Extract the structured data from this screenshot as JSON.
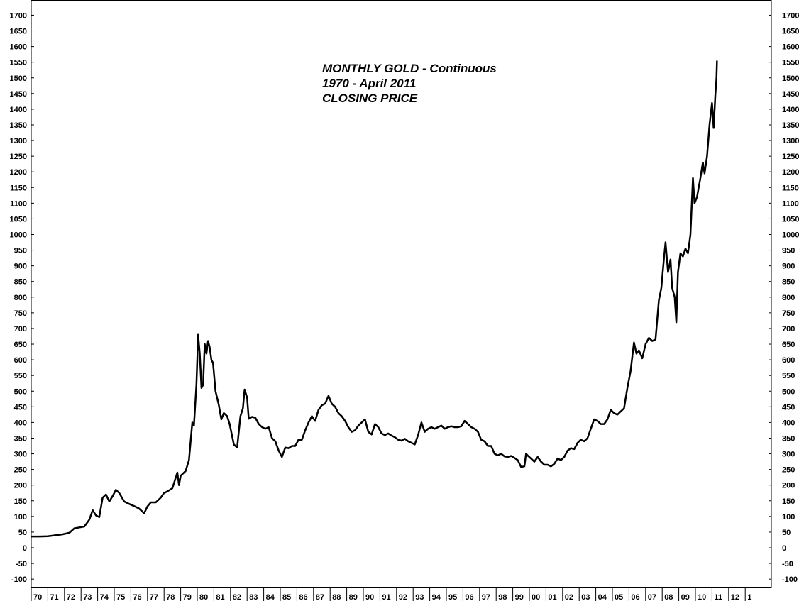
{
  "chart_data": {
    "type": "line",
    "title_lines": [
      "MONTHLY GOLD - Continuous",
      "1970 - April 2011",
      "CLOSING PRICE"
    ],
    "xlabel": "",
    "ylabel": "",
    "ylim": [
      -115,
      1725
    ],
    "y_ticks": [
      1700,
      1650,
      1600,
      1550,
      1500,
      1450,
      1400,
      1350,
      1300,
      1250,
      1200,
      1150,
      1100,
      1050,
      1000,
      950,
      900,
      850,
      800,
      750,
      700,
      650,
      600,
      550,
      500,
      450,
      400,
      350,
      300,
      250,
      200,
      150,
      100,
      50,
      0,
      -50,
      -100
    ],
    "y_tick_labels": [
      "1700",
      "1650",
      "1600",
      "1550",
      "1500",
      "1450",
      "1400",
      "1350",
      "1300",
      "1250",
      "1200",
      "1150",
      "1100",
      "1050",
      "1000",
      "950",
      "900",
      "850",
      "800",
      "750",
      "700",
      "650",
      "600",
      "550",
      "500",
      "450",
      "400",
      "350",
      "300",
      "250",
      "200",
      "150",
      "100",
      "50",
      "0",
      "-50",
      "-100"
    ],
    "xlim": [
      1970,
      2013.3
    ],
    "x_tick_labels": [
      "70",
      "71",
      "72",
      "73",
      "74",
      "75",
      "76",
      "77",
      "78",
      "79",
      "80",
      "81",
      "82",
      "83",
      "84",
      "85",
      "86",
      "87",
      "88",
      "89",
      "90",
      "91",
      "92",
      "93",
      "94",
      "95",
      "96",
      "97",
      "98",
      "99",
      "00",
      "01",
      "02",
      "03",
      "04",
      "05",
      "06",
      "07",
      "08",
      "09",
      "10",
      "11",
      "12",
      "1"
    ],
    "grid": false,
    "legend": "none",
    "line_color": "#000000",
    "series": [
      {
        "points": [
          [
            1970.0,
            36
          ],
          [
            1970.5,
            36
          ],
          [
            1971.0,
            37
          ],
          [
            1971.5,
            40
          ],
          [
            1971.9,
            43
          ],
          [
            1972.3,
            48
          ],
          [
            1972.6,
            62
          ],
          [
            1972.9,
            65
          ],
          [
            1973.2,
            68
          ],
          [
            1973.5,
            90
          ],
          [
            1973.7,
            120
          ],
          [
            1973.9,
            103
          ],
          [
            1974.1,
            98
          ],
          [
            1974.3,
            160
          ],
          [
            1974.5,
            170
          ],
          [
            1974.7,
            148
          ],
          [
            1974.9,
            165
          ],
          [
            1975.1,
            185
          ],
          [
            1975.3,
            175
          ],
          [
            1975.6,
            148
          ],
          [
            1975.9,
            140
          ],
          [
            1976.2,
            133
          ],
          [
            1976.5,
            125
          ],
          [
            1976.8,
            110
          ],
          [
            1977.0,
            132
          ],
          [
            1977.2,
            145
          ],
          [
            1977.5,
            145
          ],
          [
            1977.8,
            160
          ],
          [
            1978.0,
            175
          ],
          [
            1978.2,
            180
          ],
          [
            1978.5,
            190
          ],
          [
            1978.8,
            240
          ],
          [
            1978.9,
            200
          ],
          [
            1979.0,
            230
          ],
          [
            1979.3,
            245
          ],
          [
            1979.5,
            280
          ],
          [
            1979.7,
            400
          ],
          [
            1979.8,
            390
          ],
          [
            1979.95,
            520
          ],
          [
            1980.05,
            680
          ],
          [
            1980.15,
            620
          ],
          [
            1980.25,
            510
          ],
          [
            1980.35,
            520
          ],
          [
            1980.45,
            650
          ],
          [
            1980.55,
            620
          ],
          [
            1980.65,
            660
          ],
          [
            1980.75,
            640
          ],
          [
            1980.85,
            600
          ],
          [
            1980.95,
            590
          ],
          [
            1981.1,
            500
          ],
          [
            1981.3,
            455
          ],
          [
            1981.45,
            410
          ],
          [
            1981.6,
            430
          ],
          [
            1981.8,
            420
          ],
          [
            1981.95,
            395
          ],
          [
            1982.2,
            330
          ],
          [
            1982.4,
            320
          ],
          [
            1982.6,
            420
          ],
          [
            1982.75,
            445
          ],
          [
            1982.85,
            505
          ],
          [
            1983.0,
            480
          ],
          [
            1983.1,
            412
          ],
          [
            1983.3,
            418
          ],
          [
            1983.5,
            415
          ],
          [
            1983.7,
            395
          ],
          [
            1983.9,
            385
          ],
          [
            1984.1,
            380
          ],
          [
            1984.3,
            385
          ],
          [
            1984.5,
            350
          ],
          [
            1984.7,
            340
          ],
          [
            1984.9,
            310
          ],
          [
            1985.1,
            290
          ],
          [
            1985.3,
            320
          ],
          [
            1985.5,
            318
          ],
          [
            1985.7,
            325
          ],
          [
            1985.9,
            325
          ],
          [
            1986.1,
            345
          ],
          [
            1986.3,
            345
          ],
          [
            1986.5,
            375
          ],
          [
            1986.7,
            400
          ],
          [
            1986.9,
            420
          ],
          [
            1987.1,
            405
          ],
          [
            1987.3,
            440
          ],
          [
            1987.5,
            455
          ],
          [
            1987.7,
            460
          ],
          [
            1987.9,
            485
          ],
          [
            1988.1,
            460
          ],
          [
            1988.3,
            450
          ],
          [
            1988.5,
            430
          ],
          [
            1988.7,
            420
          ],
          [
            1988.9,
            405
          ],
          [
            1989.1,
            385
          ],
          [
            1989.3,
            370
          ],
          [
            1989.5,
            375
          ],
          [
            1989.7,
            390
          ],
          [
            1989.9,
            400
          ],
          [
            1990.1,
            410
          ],
          [
            1990.3,
            370
          ],
          [
            1990.5,
            362
          ],
          [
            1990.7,
            395
          ],
          [
            1990.9,
            385
          ],
          [
            1991.1,
            365
          ],
          [
            1991.3,
            360
          ],
          [
            1991.5,
            365
          ],
          [
            1991.7,
            358
          ],
          [
            1991.9,
            353
          ],
          [
            1992.1,
            345
          ],
          [
            1992.3,
            342
          ],
          [
            1992.5,
            348
          ],
          [
            1992.7,
            340
          ],
          [
            1992.9,
            335
          ],
          [
            1993.1,
            330
          ],
          [
            1993.3,
            360
          ],
          [
            1993.5,
            400
          ],
          [
            1993.7,
            370
          ],
          [
            1993.9,
            380
          ],
          [
            1994.1,
            385
          ],
          [
            1994.3,
            380
          ],
          [
            1994.5,
            385
          ],
          [
            1994.7,
            390
          ],
          [
            1994.9,
            380
          ],
          [
            1995.1,
            385
          ],
          [
            1995.3,
            388
          ],
          [
            1995.5,
            385
          ],
          [
            1995.7,
            385
          ],
          [
            1995.9,
            388
          ],
          [
            1996.1,
            405
          ],
          [
            1996.3,
            395
          ],
          [
            1996.5,
            385
          ],
          [
            1996.7,
            380
          ],
          [
            1996.9,
            370
          ],
          [
            1997.1,
            345
          ],
          [
            1997.3,
            340
          ],
          [
            1997.5,
            325
          ],
          [
            1997.7,
            325
          ],
          [
            1997.9,
            300
          ],
          [
            1998.1,
            295
          ],
          [
            1998.3,
            300
          ],
          [
            1998.5,
            292
          ],
          [
            1998.7,
            290
          ],
          [
            1998.9,
            293
          ],
          [
            1999.1,
            287
          ],
          [
            1999.3,
            280
          ],
          [
            1999.5,
            258
          ],
          [
            1999.7,
            260
          ],
          [
            1999.8,
            300
          ],
          [
            1999.95,
            292
          ],
          [
            2000.1,
            285
          ],
          [
            2000.3,
            275
          ],
          [
            2000.5,
            290
          ],
          [
            2000.7,
            275
          ],
          [
            2000.9,
            265
          ],
          [
            2001.1,
            265
          ],
          [
            2001.3,
            260
          ],
          [
            2001.5,
            268
          ],
          [
            2001.7,
            285
          ],
          [
            2001.9,
            280
          ],
          [
            2002.1,
            290
          ],
          [
            2002.3,
            310
          ],
          [
            2002.5,
            318
          ],
          [
            2002.7,
            315
          ],
          [
            2002.9,
            335
          ],
          [
            2003.1,
            345
          ],
          [
            2003.3,
            340
          ],
          [
            2003.5,
            350
          ],
          [
            2003.7,
            380
          ],
          [
            2003.9,
            410
          ],
          [
            2004.1,
            405
          ],
          [
            2004.3,
            395
          ],
          [
            2004.5,
            395
          ],
          [
            2004.7,
            410
          ],
          [
            2004.9,
            440
          ],
          [
            2005.1,
            430
          ],
          [
            2005.3,
            425
          ],
          [
            2005.5,
            435
          ],
          [
            2005.7,
            445
          ],
          [
            2005.9,
            510
          ],
          [
            2006.1,
            565
          ],
          [
            2006.3,
            655
          ],
          [
            2006.45,
            620
          ],
          [
            2006.6,
            630
          ],
          [
            2006.8,
            605
          ],
          [
            2007.0,
            650
          ],
          [
            2007.2,
            670
          ],
          [
            2007.4,
            660
          ],
          [
            2007.6,
            665
          ],
          [
            2007.8,
            790
          ],
          [
            2007.95,
            830
          ],
          [
            2008.1,
            920
          ],
          [
            2008.2,
            975
          ],
          [
            2008.35,
            880
          ],
          [
            2008.5,
            920
          ],
          [
            2008.6,
            830
          ],
          [
            2008.75,
            800
          ],
          [
            2008.85,
            720
          ],
          [
            2008.95,
            880
          ],
          [
            2009.1,
            940
          ],
          [
            2009.25,
            930
          ],
          [
            2009.4,
            955
          ],
          [
            2009.55,
            940
          ],
          [
            2009.7,
            1000
          ],
          [
            2009.85,
            1180
          ],
          [
            2009.95,
            1100
          ],
          [
            2010.1,
            1120
          ],
          [
            2010.3,
            1180
          ],
          [
            2010.45,
            1230
          ],
          [
            2010.55,
            1195
          ],
          [
            2010.7,
            1250
          ],
          [
            2010.85,
            1350
          ],
          [
            2011.0,
            1420
          ],
          [
            2011.1,
            1340
          ],
          [
            2011.2,
            1445
          ],
          [
            2011.27,
            1500
          ],
          [
            2011.3,
            1555
          ]
        ]
      }
    ]
  }
}
